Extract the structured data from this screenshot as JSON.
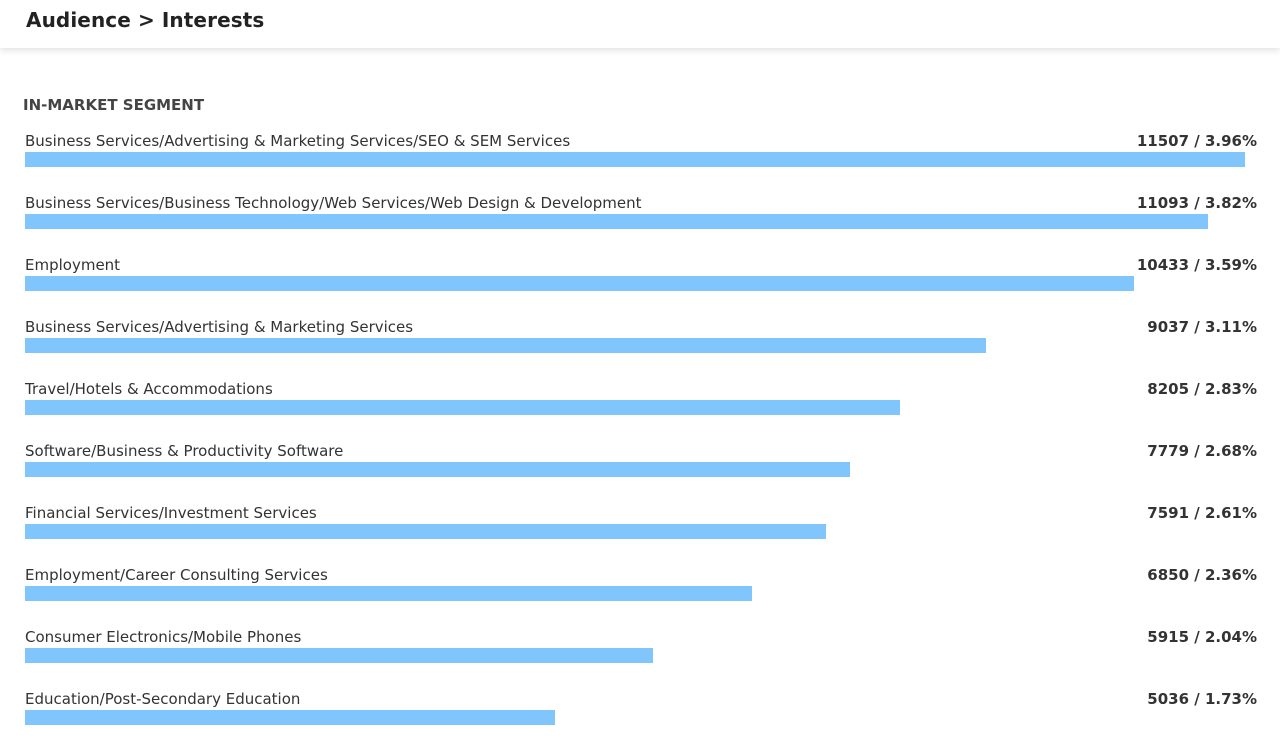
{
  "header": {
    "title": "Audience > Interests"
  },
  "section": {
    "title": "IN-MARKET SEGMENT"
  },
  "colors": {
    "bar": "#80c6fc"
  },
  "segments": [
    {
      "label": "Business Services/Advertising & Marketing Services/SEO & SEM Services",
      "count": 11507,
      "display": "11507 / 3.96%",
      "bar_fraction": 0.99
    },
    {
      "label": "Business Services/Business Technology/Web Services/Web Design & Development",
      "count": 11093,
      "display": "11093 / 3.82%",
      "bar_fraction": 0.96
    },
    {
      "label": "Employment",
      "count": 10433,
      "display": "10433 / 3.59%",
      "bar_fraction": 0.9
    },
    {
      "label": "Business Services/Advertising & Marketing Services",
      "count": 9037,
      "display": "9037 / 3.11%",
      "bar_fraction": 0.78
    },
    {
      "label": "Travel/Hotels & Accommodations",
      "count": 8205,
      "display": "8205 / 2.83%",
      "bar_fraction": 0.71
    },
    {
      "label": "Software/Business & Productivity Software",
      "count": 7779,
      "display": "7779 / 2.68%",
      "bar_fraction": 0.67
    },
    {
      "label": "Financial Services/Investment Services",
      "count": 7591,
      "display": "7591 / 2.61%",
      "bar_fraction": 0.65
    },
    {
      "label": "Employment/Career Consulting Services",
      "count": 6850,
      "display": "6850 / 2.36%",
      "bar_fraction": 0.59
    },
    {
      "label": "Consumer Electronics/Mobile Phones",
      "count": 5915,
      "display": "5915 / 2.04%",
      "bar_fraction": 0.51
    },
    {
      "label": "Education/Post-Secondary Education",
      "count": 5036,
      "display": "5036 / 1.73%",
      "bar_fraction": 0.43
    }
  ]
}
